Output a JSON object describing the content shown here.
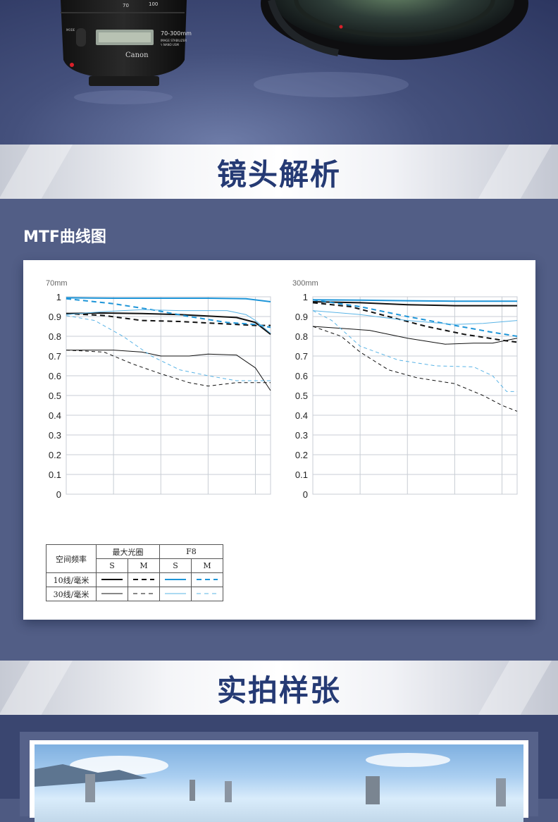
{
  "hero": {
    "lens_brand": "Canon",
    "lens_model": "70-300mm",
    "lens_markings": [
      "IMAGE STABILIZER",
      "ϟ NANO USM"
    ],
    "scale_marks": [
      "70",
      "100"
    ],
    "side_labels": [
      "MODE",
      "AF",
      "MF"
    ]
  },
  "sections": {
    "analysis_title": "镜头解析",
    "sample_title": "实拍样张"
  },
  "mtf": {
    "heading": "MTF曲线图",
    "legend": {
      "header_row": "空间频率",
      "col_max_aperture": "最大光圈",
      "col_f8": "F8",
      "sub_s": "S",
      "sub_m": "M",
      "row_10": "10线/毫米",
      "row_30": "30线/毫米"
    },
    "colors": {
      "black": "#111111",
      "blue": "#1e95d8",
      "light_blue": "#5ab4e6",
      "grid": "#c8cdd4"
    }
  },
  "chart_data": [
    {
      "type": "line",
      "title": "70mm",
      "xlim": [
        0,
        21.6
      ],
      "ylim": [
        0,
        1.0
      ],
      "xticks": [
        0,
        5,
        10,
        15,
        20
      ],
      "yticks": [
        0,
        0.1,
        0.2,
        0.3,
        0.4,
        0.5,
        0.6,
        0.7,
        0.8,
        0.9,
        1.0
      ],
      "grid": true,
      "series": [
        {
          "key": "s10_max",
          "points": [
            [
              0,
              0.915
            ],
            [
              4,
              0.918
            ],
            [
              8,
              0.915
            ],
            [
              12,
              0.91
            ],
            [
              14,
              0.905
            ],
            [
              16,
              0.9
            ],
            [
              18,
              0.895
            ],
            [
              20,
              0.87
            ],
            [
              21.6,
              0.81
            ]
          ]
        },
        {
          "key": "m10_max",
          "points": [
            [
              0,
              0.915
            ],
            [
              4,
              0.905
            ],
            [
              8,
              0.88
            ],
            [
              12,
              0.875
            ],
            [
              16,
              0.865
            ],
            [
              18,
              0.86
            ],
            [
              20,
              0.855
            ],
            [
              21.6,
              0.855
            ]
          ]
        },
        {
          "key": "s10_f8",
          "points": [
            [
              0,
              0.995
            ],
            [
              5,
              0.993
            ],
            [
              10,
              0.993
            ],
            [
              15,
              0.993
            ],
            [
              19,
              0.99
            ],
            [
              21.6,
              0.975
            ]
          ]
        },
        {
          "key": "m10_f8",
          "points": [
            [
              0,
              0.99
            ],
            [
              5,
              0.965
            ],
            [
              9,
              0.935
            ],
            [
              13,
              0.9
            ],
            [
              17,
              0.87
            ],
            [
              20,
              0.86
            ],
            [
              21.6,
              0.845
            ]
          ]
        },
        {
          "key": "s30_max",
          "points": [
            [
              0,
              0.73
            ],
            [
              5,
              0.73
            ],
            [
              8,
              0.72
            ],
            [
              10,
              0.7
            ],
            [
              13,
              0.7
            ],
            [
              15,
              0.71
            ],
            [
              18,
              0.705
            ],
            [
              20,
              0.64
            ],
            [
              21.6,
              0.525
            ]
          ]
        },
        {
          "key": "m30_max",
          "points": [
            [
              0,
              0.73
            ],
            [
              4,
              0.72
            ],
            [
              7,
              0.66
            ],
            [
              10,
              0.61
            ],
            [
              13,
              0.565
            ],
            [
              15,
              0.548
            ],
            [
              18,
              0.565
            ],
            [
              21.6,
              0.565
            ]
          ]
        },
        {
          "key": "s30_f8",
          "points": [
            [
              0,
              0.91
            ],
            [
              4,
              0.925
            ],
            [
              8,
              0.935
            ],
            [
              12,
              0.93
            ],
            [
              17,
              0.93
            ],
            [
              19,
              0.91
            ],
            [
              20,
              0.88
            ],
            [
              21.6,
              0.815
            ]
          ]
        },
        {
          "key": "m30_f8",
          "points": [
            [
              0,
              0.905
            ],
            [
              3,
              0.88
            ],
            [
              6,
              0.8
            ],
            [
              9,
              0.7
            ],
            [
              12,
              0.63
            ],
            [
              15,
              0.6
            ],
            [
              18,
              0.575
            ],
            [
              21.6,
              0.575
            ]
          ]
        }
      ]
    },
    {
      "type": "line",
      "title": "300mm",
      "xlim": [
        0,
        21.6
      ],
      "ylim": [
        0,
        1.0
      ],
      "xticks": [
        0,
        5,
        10,
        15,
        20
      ],
      "yticks": [
        0,
        0.1,
        0.2,
        0.3,
        0.4,
        0.5,
        0.6,
        0.7,
        0.8,
        0.9,
        1.0
      ],
      "grid": true,
      "series": [
        {
          "key": "s10_max",
          "points": [
            [
              0,
              0.975
            ],
            [
              5,
              0.97
            ],
            [
              10,
              0.96
            ],
            [
              15,
              0.955
            ],
            [
              20,
              0.955
            ],
            [
              21.6,
              0.955
            ]
          ]
        },
        {
          "key": "m10_max",
          "points": [
            [
              0,
              0.97
            ],
            [
              4,
              0.95
            ],
            [
              8,
              0.9
            ],
            [
              12,
              0.85
            ],
            [
              16,
              0.81
            ],
            [
              20,
              0.78
            ],
            [
              21.6,
              0.77
            ]
          ]
        },
        {
          "key": "s10_f8",
          "points": [
            [
              0,
              0.985
            ],
            [
              5,
              0.983
            ],
            [
              10,
              0.98
            ],
            [
              15,
              0.978
            ],
            [
              21.6,
              0.978
            ]
          ]
        },
        {
          "key": "m10_f8",
          "points": [
            [
              0,
              0.985
            ],
            [
              5,
              0.95
            ],
            [
              10,
              0.9
            ],
            [
              15,
              0.855
            ],
            [
              19,
              0.82
            ],
            [
              21.6,
              0.8
            ]
          ]
        },
        {
          "key": "s30_max",
          "points": [
            [
              0,
              0.85
            ],
            [
              3,
              0.84
            ],
            [
              6,
              0.83
            ],
            [
              10,
              0.79
            ],
            [
              14,
              0.76
            ],
            [
              17,
              0.765
            ],
            [
              19,
              0.765
            ],
            [
              21.6,
              0.79
            ]
          ]
        },
        {
          "key": "m30_max",
          "points": [
            [
              0,
              0.85
            ],
            [
              3,
              0.8
            ],
            [
              5,
              0.72
            ],
            [
              8,
              0.63
            ],
            [
              11,
              0.59
            ],
            [
              15,
              0.56
            ],
            [
              18,
              0.5
            ],
            [
              20,
              0.45
            ],
            [
              21.6,
              0.42
            ]
          ]
        },
        {
          "key": "s30_f8",
          "points": [
            [
              0,
              0.93
            ],
            [
              5,
              0.91
            ],
            [
              10,
              0.88
            ],
            [
              15,
              0.86
            ],
            [
              18,
              0.865
            ],
            [
              21.6,
              0.88
            ]
          ]
        },
        {
          "key": "m30_f8",
          "points": [
            [
              0,
              0.93
            ],
            [
              2,
              0.88
            ],
            [
              5,
              0.75
            ],
            [
              9,
              0.68
            ],
            [
              13,
              0.65
            ],
            [
              17,
              0.645
            ],
            [
              19,
              0.6
            ],
            [
              20.5,
              0.52
            ],
            [
              21.6,
              0.52
            ]
          ]
        }
      ]
    }
  ]
}
